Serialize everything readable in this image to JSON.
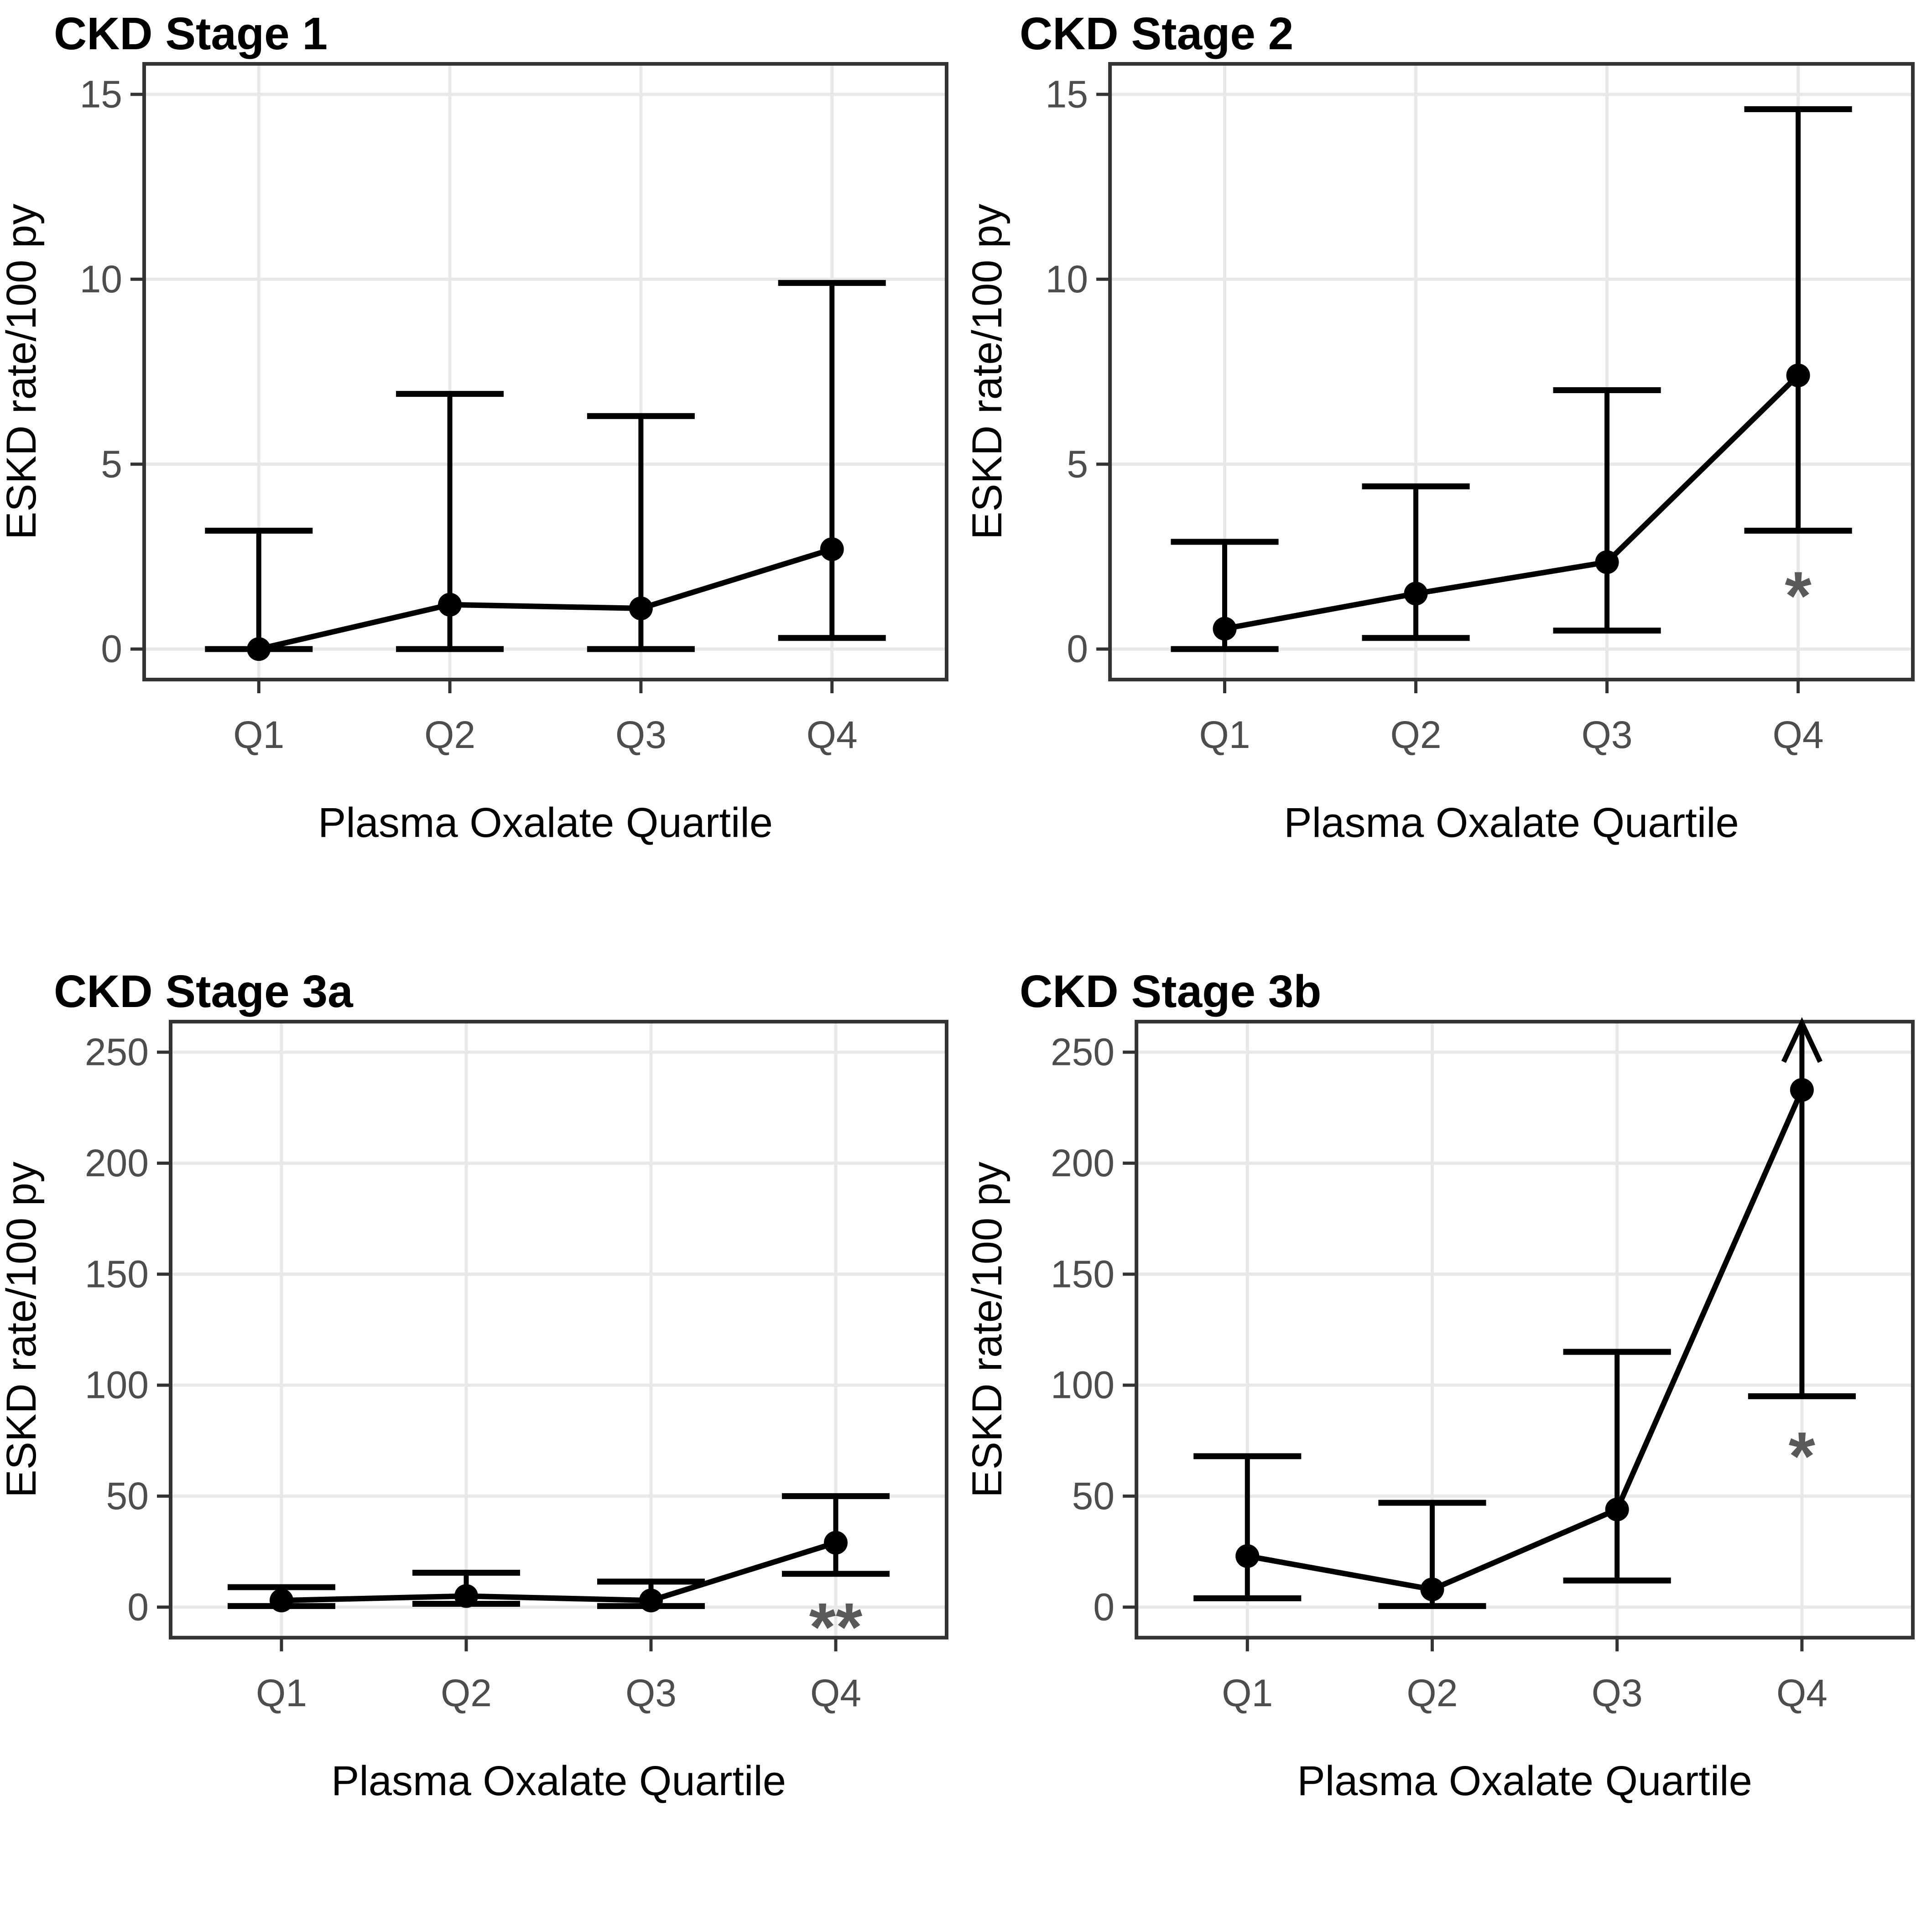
{
  "figure": {
    "layout": "2x2-panel-grid",
    "background": "#ffffff"
  },
  "styles": {
    "title_color": "#000000",
    "axis_title_color": "#000000",
    "tick_label_color": "#4d4d4d",
    "tick_mark_color": "#333333",
    "panel_border_color": "#333333",
    "gridline_color": "#e8e8e8",
    "data_color": "#000000",
    "annotation_color": "#595959"
  },
  "chart_data": [
    {
      "type": "line",
      "title": "CKD Stage 1",
      "xlabel": "Plasma Oxalate Quartile",
      "ylabel": "ESKD rate/100 py",
      "categories": [
        "Q1",
        "Q2",
        "Q3",
        "Q4"
      ],
      "series": [
        {
          "name": "ESKD rate",
          "values": [
            0.0,
            1.2,
            1.1,
            2.7
          ]
        }
      ],
      "error_low": [
        0.0,
        0.0,
        0.0,
        0.3
      ],
      "error_high": [
        3.2,
        6.9,
        6.3,
        9.9
      ],
      "ylim": [
        0,
        15
      ],
      "yticks": [
        0,
        5,
        10,
        15
      ],
      "grid": true,
      "legend": "none",
      "annotation": null,
      "upper_arrow_at": null
    },
    {
      "type": "line",
      "title": "CKD Stage 2",
      "xlabel": "Plasma Oxalate Quartile",
      "ylabel": "ESKD rate/100 py",
      "categories": [
        "Q1",
        "Q2",
        "Q3",
        "Q4"
      ],
      "series": [
        {
          "name": "ESKD rate",
          "values": [
            0.55,
            1.5,
            2.35,
            7.4
          ]
        }
      ],
      "error_low": [
        0.0,
        0.3,
        0.5,
        3.2
      ],
      "error_high": [
        2.9,
        4.4,
        7.0,
        14.6
      ],
      "ylim": [
        0,
        15
      ],
      "yticks": [
        0,
        5,
        10,
        15
      ],
      "grid": true,
      "legend": "none",
      "annotation": {
        "text": "*",
        "category": "Q4",
        "y": 2.1
      },
      "upper_arrow_at": null
    },
    {
      "type": "line",
      "title": "CKD Stage 3a",
      "xlabel": "Plasma Oxalate Quartile",
      "ylabel": "ESKD rate/100 py",
      "categories": [
        "Q1",
        "Q2",
        "Q3",
        "Q4"
      ],
      "series": [
        {
          "name": "ESKD rate",
          "values": [
            3,
            5,
            3,
            29
          ]
        }
      ],
      "error_low": [
        0.5,
        1.5,
        0.5,
        15
      ],
      "error_high": [
        9,
        15.5,
        11.5,
        50
      ],
      "ylim": [
        0,
        250
      ],
      "yticks": [
        0,
        50,
        100,
        150,
        200,
        250
      ],
      "grid": true,
      "legend": "none",
      "annotation": {
        "text": "**",
        "category": "Q4",
        "y": 2
      },
      "upper_arrow_at": null
    },
    {
      "type": "line",
      "title": "CKD Stage 3b",
      "xlabel": "Plasma Oxalate Quartile",
      "ylabel": "ESKD rate/100 py",
      "categories": [
        "Q1",
        "Q2",
        "Q3",
        "Q4"
      ],
      "series": [
        {
          "name": "ESKD rate",
          "values": [
            23,
            8,
            44,
            233
          ]
        }
      ],
      "error_low": [
        4,
        0.5,
        12,
        95
      ],
      "error_high": [
        68,
        47,
        115,
        null
      ],
      "ylim": [
        0,
        250
      ],
      "yticks": [
        0,
        50,
        100,
        150,
        200,
        250
      ],
      "grid": true,
      "legend": "none",
      "annotation": {
        "text": "*",
        "category": "Q4",
        "y": 79
      },
      "upper_arrow_at": "Q4"
    }
  ]
}
